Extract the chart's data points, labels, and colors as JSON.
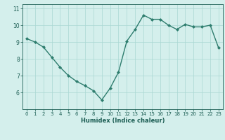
{
  "x": [
    0,
    1,
    2,
    3,
    4,
    5,
    6,
    7,
    8,
    9,
    10,
    11,
    12,
    13,
    14,
    15,
    16,
    17,
    18,
    19,
    20,
    21,
    22,
    23
  ],
  "y": [
    9.2,
    9.0,
    8.7,
    8.1,
    7.5,
    7.0,
    6.65,
    6.4,
    6.1,
    5.55,
    6.25,
    7.2,
    9.05,
    9.75,
    10.6,
    10.35,
    10.35,
    10.0,
    9.75,
    10.05,
    9.9,
    9.9,
    10.0,
    8.65
  ],
  "xlabel": "Humidex (Indice chaleur)",
  "xlim": [
    -0.5,
    23.5
  ],
  "ylim": [
    5.0,
    11.25
  ],
  "yticks": [
    6,
    7,
    8,
    9,
    10,
    11
  ],
  "xticks": [
    0,
    1,
    2,
    3,
    4,
    5,
    6,
    7,
    8,
    9,
    10,
    11,
    12,
    13,
    14,
    15,
    16,
    17,
    18,
    19,
    20,
    21,
    22,
    23
  ],
  "line_color": "#2e7d6e",
  "marker_color": "#2e7d6e",
  "bg_color": "#d4efec",
  "grid_color": "#aad8d3",
  "label_color": "#1a5c52",
  "tick_color": "#1a5c52"
}
